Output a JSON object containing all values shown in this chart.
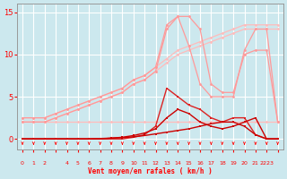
{
  "bg_color": "#cce8ee",
  "grid_color": "#ffffff",
  "xlabel": "Vent moyen/en rafales ( km/h )",
  "xlabel_color": "#ff0000",
  "tick_color": "#ff0000",
  "arrow_color": "#ff0000",
  "x_ticks": [
    0,
    1,
    2,
    3,
    4,
    5,
    6,
    7,
    8,
    9,
    10,
    11,
    12,
    13,
    14,
    15,
    16,
    17,
    18,
    19,
    20,
    21,
    22,
    23
  ],
  "x_tick_labels": [
    "0",
    "1",
    "2",
    "",
    "4",
    "5",
    "6",
    "7",
    "8",
    "9",
    "10",
    "11",
    "12",
    "13",
    "14",
    "15",
    "16",
    "17",
    "18",
    "19",
    "20",
    "21",
    "2223"
  ],
  "ylim": [
    -1.2,
    16
  ],
  "xlim": [
    -0.5,
    23.5
  ],
  "yticks": [
    0,
    5,
    10,
    15
  ],
  "series": [
    {
      "x": [
        0,
        1,
        2,
        3,
        4,
        5,
        6,
        7,
        8,
        9,
        10,
        11,
        12,
        13,
        14,
        15,
        16,
        17,
        18,
        19,
        20,
        21,
        22,
        23
      ],
      "y": [
        2.0,
        2.0,
        2.0,
        2.0,
        2.0,
        2.0,
        2.0,
        2.0,
        2.0,
        2.0,
        2.0,
        2.0,
        2.0,
        2.0,
        2.0,
        2.0,
        2.0,
        2.0,
        2.0,
        2.0,
        2.0,
        2.0,
        2.0,
        2.0
      ],
      "color": "#ffbbbb",
      "lw": 0.9,
      "marker": "o",
      "ms": 2.0
    },
    {
      "x": [
        0,
        1,
        2,
        3,
        4,
        5,
        6,
        7,
        8,
        9,
        10,
        11,
        12,
        13,
        14,
        15,
        16,
        17,
        18,
        19,
        20,
        21,
        22,
        23
      ],
      "y": [
        2.0,
        2.0,
        2.0,
        2.5,
        3.0,
        3.5,
        4.0,
        4.5,
        5.0,
        5.5,
        6.5,
        7.0,
        8.0,
        9.0,
        10.0,
        10.5,
        11.0,
        11.5,
        12.0,
        12.5,
        13.0,
        13.0,
        13.0,
        13.0
      ],
      "color": "#ffbbbb",
      "lw": 0.9,
      "marker": "o",
      "ms": 2.0
    },
    {
      "x": [
        0,
        1,
        2,
        3,
        4,
        5,
        6,
        7,
        8,
        9,
        10,
        11,
        12,
        13,
        14,
        15,
        16,
        17,
        18,
        19,
        20,
        21,
        22,
        23
      ],
      "y": [
        2.5,
        2.5,
        2.5,
        3.0,
        3.5,
        4.0,
        4.5,
        5.0,
        5.5,
        6.0,
        7.0,
        7.5,
        8.5,
        9.5,
        10.5,
        11.0,
        11.5,
        12.0,
        12.5,
        13.0,
        13.5,
        13.5,
        13.5,
        13.5
      ],
      "color": "#ffbbbb",
      "lw": 0.9,
      "marker": "o",
      "ms": 2.0
    },
    {
      "x": [
        0,
        1,
        2,
        3,
        4,
        5,
        6,
        7,
        8,
        9,
        10,
        11,
        12,
        13,
        14,
        15,
        16,
        17,
        18,
        19,
        20,
        21,
        22,
        23
      ],
      "y": [
        2.5,
        2.5,
        2.5,
        3.0,
        3.5,
        4.0,
        4.5,
        5.0,
        5.5,
        6.0,
        7.0,
        7.5,
        8.5,
        13.5,
        14.5,
        11.0,
        6.5,
        5.0,
        5.0,
        5.0,
        10.5,
        13.0,
        13.0,
        2.0
      ],
      "color": "#ff9999",
      "lw": 0.9,
      "marker": "o",
      "ms": 2.0
    },
    {
      "x": [
        0,
        1,
        2,
        3,
        4,
        5,
        6,
        7,
        8,
        9,
        10,
        11,
        12,
        13,
        14,
        15,
        16,
        17,
        18,
        19,
        20,
        21,
        22,
        23
      ],
      "y": [
        2.0,
        2.0,
        2.0,
        2.5,
        3.0,
        3.5,
        4.0,
        4.5,
        5.0,
        5.5,
        6.5,
        7.0,
        8.0,
        13.0,
        14.5,
        14.5,
        13.0,
        6.5,
        5.5,
        5.5,
        10.0,
        10.5,
        10.5,
        2.0
      ],
      "color": "#ff9999",
      "lw": 0.9,
      "marker": "o",
      "ms": 2.0
    },
    {
      "x": [
        0,
        1,
        2,
        3,
        4,
        5,
        6,
        7,
        8,
        9,
        10,
        11,
        12,
        13,
        14,
        15,
        16,
        17,
        18,
        19,
        20,
        21,
        22,
        23
      ],
      "y": [
        0,
        0,
        0,
        0,
        0,
        0,
        0,
        0,
        0,
        0,
        0.2,
        0.5,
        1.5,
        6.0,
        5.0,
        4.0,
        3.5,
        2.5,
        2.0,
        2.5,
        2.5,
        0.5,
        0,
        0
      ],
      "color": "#dd2222",
      "lw": 1.0,
      "marker": "s",
      "ms": 2.0
    },
    {
      "x": [
        0,
        1,
        2,
        3,
        4,
        5,
        6,
        7,
        8,
        9,
        10,
        11,
        12,
        13,
        14,
        15,
        16,
        17,
        18,
        19,
        20,
        21,
        22,
        23
      ],
      "y": [
        0,
        0,
        0,
        0,
        0,
        0,
        0,
        0,
        0.1,
        0.2,
        0.4,
        0.7,
        1.2,
        2.5,
        3.5,
        3.0,
        2.0,
        1.5,
        1.2,
        1.5,
        2.0,
        2.5,
        0,
        0
      ],
      "color": "#cc0000",
      "lw": 1.0,
      "marker": "s",
      "ms": 2.0
    },
    {
      "x": [
        0,
        1,
        2,
        3,
        4,
        5,
        6,
        7,
        8,
        9,
        10,
        11,
        12,
        13,
        14,
        15,
        16,
        17,
        18,
        19,
        20,
        21,
        22,
        23
      ],
      "y": [
        0,
        0,
        0,
        0,
        0,
        0,
        0,
        0.05,
        0.1,
        0.15,
        0.25,
        0.4,
        0.6,
        0.8,
        1.0,
        1.2,
        1.5,
        1.8,
        2.0,
        2.0,
        1.5,
        0.5,
        0,
        0
      ],
      "color": "#cc0000",
      "lw": 1.0,
      "marker": "s",
      "ms": 2.0
    }
  ]
}
